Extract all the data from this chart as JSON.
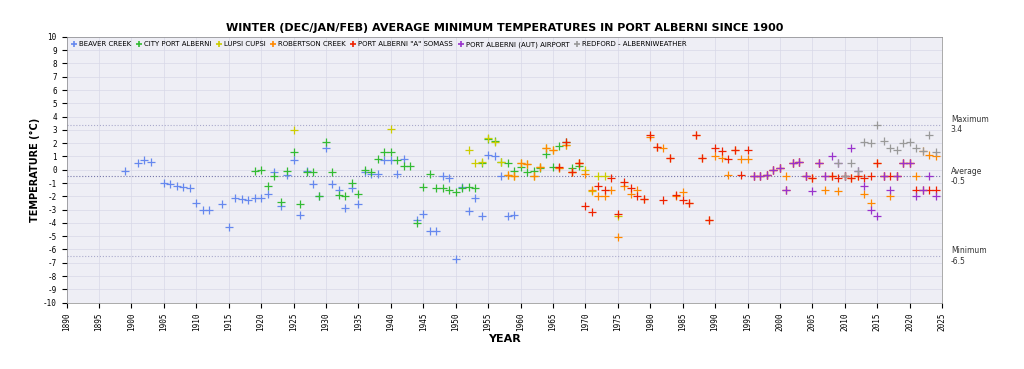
{
  "title": "WINTER (DEC/JAN/FEB) AVERAGE MINIMUM TEMPERATURES IN PORT ALBERNI SINCE 1900",
  "xlabel": "YEAR",
  "ylabel": "TEMPERATURE (°C)",
  "ylim": [
    -10,
    10
  ],
  "xlim": [
    1890,
    2025
  ],
  "average": -0.5,
  "maximum": 3.4,
  "minimum": -6.5,
  "background_color": "#eeeef5",
  "grid_color": "#d8d8e8",
  "series": {
    "beaver_creek": {
      "label": "BEAVER CREEK",
      "color": "#6688ee",
      "data": [
        [
          1899,
          -0.1
        ],
        [
          1901,
          0.5
        ],
        [
          1902,
          0.7
        ],
        [
          1903,
          0.6
        ],
        [
          1905,
          -1.0
        ],
        [
          1906,
          -1.1
        ],
        [
          1907,
          -1.2
        ],
        [
          1908,
          -1.3
        ],
        [
          1909,
          -1.4
        ],
        [
          1910,
          -2.5
        ],
        [
          1911,
          -3.0
        ],
        [
          1912,
          -3.0
        ],
        [
          1914,
          -2.6
        ],
        [
          1915,
          -4.3
        ],
        [
          1916,
          -2.1
        ],
        [
          1917,
          -2.2
        ],
        [
          1918,
          -2.3
        ],
        [
          1919,
          -2.1
        ],
        [
          1920,
          -2.1
        ],
        [
          1921,
          -1.8
        ],
        [
          1922,
          -0.2
        ],
        [
          1923,
          -2.7
        ],
        [
          1924,
          -0.4
        ],
        [
          1925,
          0.7
        ],
        [
          1926,
          -3.4
        ],
        [
          1927,
          -0.1
        ],
        [
          1928,
          -1.1
        ],
        [
          1929,
          -2.0
        ],
        [
          1930,
          1.6
        ],
        [
          1931,
          -1.1
        ],
        [
          1932,
          -1.5
        ],
        [
          1933,
          -2.9
        ],
        [
          1934,
          -1.4
        ],
        [
          1935,
          -2.6
        ],
        [
          1936,
          -0.2
        ],
        [
          1937,
          -0.3
        ],
        [
          1938,
          -0.3
        ],
        [
          1939,
          0.7
        ],
        [
          1940,
          0.7
        ],
        [
          1941,
          -0.3
        ],
        [
          1942,
          0.8
        ],
        [
          1944,
          -3.8
        ],
        [
          1945,
          -3.3
        ],
        [
          1946,
          -4.6
        ],
        [
          1947,
          -4.6
        ],
        [
          1948,
          -0.5
        ],
        [
          1949,
          -0.6
        ],
        [
          1950,
          -6.7
        ],
        [
          1951,
          -1.3
        ],
        [
          1952,
          -3.1
        ],
        [
          1953,
          -2.1
        ],
        [
          1954,
          -3.5
        ],
        [
          1955,
          1.1
        ],
        [
          1956,
          1.0
        ],
        [
          1957,
          -0.5
        ],
        [
          1958,
          -3.5
        ],
        [
          1959,
          -3.4
        ]
      ]
    },
    "city_port_alberni": {
      "label": "CITY PORT ALBERNI",
      "color": "#33bb33",
      "data": [
        [
          1919,
          -0.1
        ],
        [
          1920,
          0.0
        ],
        [
          1921,
          -1.2
        ],
        [
          1922,
          -0.5
        ],
        [
          1923,
          -2.4
        ],
        [
          1924,
          -0.1
        ],
        [
          1925,
          1.3
        ],
        [
          1926,
          -2.6
        ],
        [
          1927,
          -0.2
        ],
        [
          1928,
          -0.2
        ],
        [
          1929,
          -2.0
        ],
        [
          1930,
          2.1
        ],
        [
          1931,
          -0.2
        ],
        [
          1932,
          -1.9
        ],
        [
          1933,
          -2.0
        ],
        [
          1934,
          -1.0
        ],
        [
          1935,
          -1.8
        ],
        [
          1936,
          0.0
        ],
        [
          1937,
          -0.2
        ],
        [
          1938,
          0.8
        ],
        [
          1939,
          1.3
        ],
        [
          1940,
          1.3
        ],
        [
          1941,
          0.7
        ],
        [
          1942,
          0.3
        ],
        [
          1943,
          0.3
        ],
        [
          1944,
          -4.0
        ],
        [
          1945,
          -1.3
        ],
        [
          1946,
          -0.3
        ],
        [
          1947,
          -1.4
        ],
        [
          1948,
          -1.4
        ],
        [
          1949,
          -1.5
        ],
        [
          1950,
          -1.7
        ],
        [
          1951,
          -1.4
        ],
        [
          1952,
          -1.3
        ],
        [
          1953,
          -1.4
        ],
        [
          1954,
          0.5
        ],
        [
          1955,
          2.3
        ],
        [
          1956,
          2.2
        ],
        [
          1957,
          0.6
        ],
        [
          1958,
          0.5
        ],
        [
          1959,
          -0.1
        ],
        [
          1960,
          0.2
        ],
        [
          1961,
          -0.2
        ],
        [
          1962,
          -0.1
        ],
        [
          1963,
          0.1
        ],
        [
          1964,
          1.2
        ],
        [
          1965,
          0.2
        ],
        [
          1966,
          1.8
        ],
        [
          1967,
          2.1
        ],
        [
          1968,
          0.1
        ],
        [
          1969,
          0.3
        ]
      ]
    },
    "lupsi_cupsi": {
      "label": "LUPSI CUPSI",
      "color": "#cccc00",
      "data": [
        [
          1925,
          3.0
        ],
        [
          1940,
          3.1
        ],
        [
          1952,
          1.5
        ],
        [
          1953,
          0.5
        ],
        [
          1954,
          0.6
        ],
        [
          1955,
          2.4
        ],
        [
          1956,
          2.1
        ],
        [
          1957,
          0.6
        ],
        [
          1958,
          -0.4
        ],
        [
          1959,
          -0.5
        ],
        [
          1960,
          0.5
        ],
        [
          1961,
          0.4
        ],
        [
          1962,
          -0.5
        ],
        [
          1963,
          0.2
        ],
        [
          1964,
          1.6
        ],
        [
          1965,
          1.5
        ],
        [
          1966,
          0.1
        ],
        [
          1967,
          1.9
        ],
        [
          1968,
          -0.2
        ],
        [
          1969,
          0.5
        ],
        [
          1970,
          0.0
        ],
        [
          1971,
          -1.6
        ],
        [
          1972,
          -0.5
        ],
        [
          1973,
          -0.5
        ],
        [
          1975,
          -3.5
        ]
      ]
    },
    "robertson_creek": {
      "label": "ROBERTSON CREEK",
      "color": "#ff8800",
      "data": [
        [
          1958,
          -0.4
        ],
        [
          1959,
          -0.5
        ],
        [
          1960,
          0.5
        ],
        [
          1961,
          0.4
        ],
        [
          1962,
          -0.5
        ],
        [
          1963,
          0.2
        ],
        [
          1964,
          1.6
        ],
        [
          1965,
          1.5
        ],
        [
          1966,
          0.1
        ],
        [
          1967,
          1.9
        ],
        [
          1968,
          -0.2
        ],
        [
          1969,
          0.5
        ],
        [
          1970,
          -0.3
        ],
        [
          1971,
          -1.5
        ],
        [
          1972,
          -2.0
        ],
        [
          1973,
          -2.0
        ],
        [
          1974,
          -1.5
        ],
        [
          1975,
          -5.1
        ],
        [
          1976,
          -1.2
        ],
        [
          1977,
          -1.8
        ],
        [
          1978,
          -1.5
        ],
        [
          1979,
          -2.2
        ],
        [
          1980,
          2.5
        ],
        [
          1981,
          1.7
        ],
        [
          1982,
          1.6
        ],
        [
          1983,
          0.9
        ],
        [
          1984,
          -2.0
        ],
        [
          1985,
          -1.7
        ],
        [
          1986,
          -2.5
        ],
        [
          1987,
          2.6
        ],
        [
          1988,
          0.9
        ],
        [
          1989,
          -3.8
        ],
        [
          1990,
          1.0
        ],
        [
          1991,
          0.9
        ],
        [
          1992,
          -0.4
        ],
        [
          1993,
          1.5
        ],
        [
          1994,
          0.8
        ],
        [
          1995,
          0.8
        ],
        [
          1996,
          -0.5
        ],
        [
          1997,
          -0.5
        ],
        [
          1998,
          -0.4
        ],
        [
          1999,
          0.0
        ],
        [
          2000,
          0.1
        ],
        [
          2001,
          -0.5
        ],
        [
          2002,
          0.5
        ],
        [
          2003,
          0.6
        ],
        [
          2004,
          -0.5
        ],
        [
          2005,
          -0.6
        ],
        [
          2006,
          0.5
        ],
        [
          2007,
          -1.5
        ],
        [
          2008,
          -0.5
        ],
        [
          2009,
          -1.6
        ],
        [
          2010,
          -0.5
        ],
        [
          2011,
          -0.6
        ],
        [
          2012,
          -0.5
        ],
        [
          2013,
          -1.8
        ],
        [
          2014,
          -2.5
        ],
        [
          2015,
          0.5
        ],
        [
          2016,
          -0.5
        ],
        [
          2017,
          -2.0
        ],
        [
          2018,
          -0.5
        ],
        [
          2019,
          0.5
        ],
        [
          2020,
          0.5
        ],
        [
          2021,
          -0.5
        ],
        [
          2022,
          1.4
        ],
        [
          2023,
          1.1
        ],
        [
          2024,
          1.0
        ]
      ]
    },
    "port_alberni_somass": {
      "label": "PORT ALBERNI \"A\" SOMASS",
      "color": "#ee2200",
      "data": [
        [
          1966,
          0.2
        ],
        [
          1967,
          2.1
        ],
        [
          1968,
          -0.2
        ],
        [
          1969,
          0.5
        ],
        [
          1970,
          -2.7
        ],
        [
          1971,
          -3.2
        ],
        [
          1972,
          -1.2
        ],
        [
          1973,
          -1.5
        ],
        [
          1974,
          -0.6
        ],
        [
          1975,
          -3.3
        ],
        [
          1976,
          -0.9
        ],
        [
          1977,
          -1.4
        ],
        [
          1978,
          -2.0
        ],
        [
          1979,
          -2.2
        ],
        [
          1980,
          2.6
        ],
        [
          1981,
          1.7
        ],
        [
          1982,
          -2.3
        ],
        [
          1983,
          0.9
        ],
        [
          1984,
          -1.9
        ],
        [
          1985,
          -2.3
        ],
        [
          1986,
          -2.5
        ],
        [
          1987,
          2.6
        ],
        [
          1988,
          0.9
        ],
        [
          1989,
          -3.8
        ],
        [
          1990,
          1.6
        ],
        [
          1991,
          1.4
        ],
        [
          1992,
          0.8
        ],
        [
          1993,
          1.5
        ],
        [
          1994,
          -0.4
        ],
        [
          1995,
          1.5
        ],
        [
          1996,
          -0.5
        ],
        [
          1997,
          -0.5
        ],
        [
          1998,
          -0.4
        ],
        [
          1999,
          0.0
        ],
        [
          2000,
          0.1
        ],
        [
          2001,
          -1.5
        ],
        [
          2002,
          0.5
        ],
        [
          2003,
          0.6
        ],
        [
          2004,
          -0.5
        ],
        [
          2005,
          -0.6
        ],
        [
          2006,
          0.5
        ],
        [
          2007,
          -0.5
        ],
        [
          2008,
          -0.5
        ],
        [
          2009,
          -0.6
        ],
        [
          2010,
          -0.5
        ],
        [
          2011,
          -0.6
        ],
        [
          2012,
          -0.5
        ],
        [
          2013,
          -0.6
        ],
        [
          2014,
          -0.5
        ],
        [
          2015,
          0.5
        ],
        [
          2016,
          -0.5
        ],
        [
          2017,
          -0.5
        ],
        [
          2018,
          -0.5
        ],
        [
          2019,
          0.5
        ],
        [
          2020,
          0.5
        ],
        [
          2021,
          -1.5
        ],
        [
          2022,
          -1.5
        ],
        [
          2023,
          -1.5
        ],
        [
          2024,
          -1.5
        ]
      ]
    },
    "port_alberni_airport": {
      "label": "PORT ALBERNI (AUT) AIRPORT",
      "color": "#9933cc",
      "data": [
        [
          1996,
          -0.5
        ],
        [
          1997,
          -0.5
        ],
        [
          1998,
          -0.4
        ],
        [
          1999,
          0.0
        ],
        [
          2000,
          0.1
        ],
        [
          2001,
          -1.5
        ],
        [
          2002,
          0.5
        ],
        [
          2003,
          0.6
        ],
        [
          2004,
          -0.5
        ],
        [
          2005,
          -1.6
        ],
        [
          2006,
          0.5
        ],
        [
          2007,
          -0.5
        ],
        [
          2008,
          1.0
        ],
        [
          2009,
          0.5
        ],
        [
          2010,
          -0.5
        ],
        [
          2011,
          1.6
        ],
        [
          2012,
          -0.1
        ],
        [
          2013,
          -1.2
        ],
        [
          2014,
          -3.0
        ],
        [
          2015,
          -3.5
        ],
        [
          2016,
          -0.5
        ],
        [
          2017,
          -1.5
        ],
        [
          2018,
          -0.5
        ],
        [
          2019,
          0.5
        ],
        [
          2020,
          0.5
        ],
        [
          2021,
          -2.0
        ],
        [
          2022,
          -1.5
        ],
        [
          2023,
          -0.5
        ],
        [
          2024,
          -2.0
        ]
      ]
    },
    "redford_alberniweather": {
      "label": "REDFORD - ALBERNIWEATHER",
      "color": "#999999",
      "data": [
        [
          2009,
          0.5
        ],
        [
          2010,
          -0.5
        ],
        [
          2011,
          0.5
        ],
        [
          2012,
          -0.1
        ],
        [
          2013,
          2.1
        ],
        [
          2014,
          2.0
        ],
        [
          2015,
          3.4
        ],
        [
          2016,
          2.2
        ],
        [
          2017,
          1.6
        ],
        [
          2018,
          1.5
        ],
        [
          2019,
          2.0
        ],
        [
          2020,
          2.1
        ],
        [
          2021,
          1.6
        ],
        [
          2022,
          1.4
        ],
        [
          2023,
          2.6
        ],
        [
          2024,
          1.3
        ]
      ]
    }
  }
}
